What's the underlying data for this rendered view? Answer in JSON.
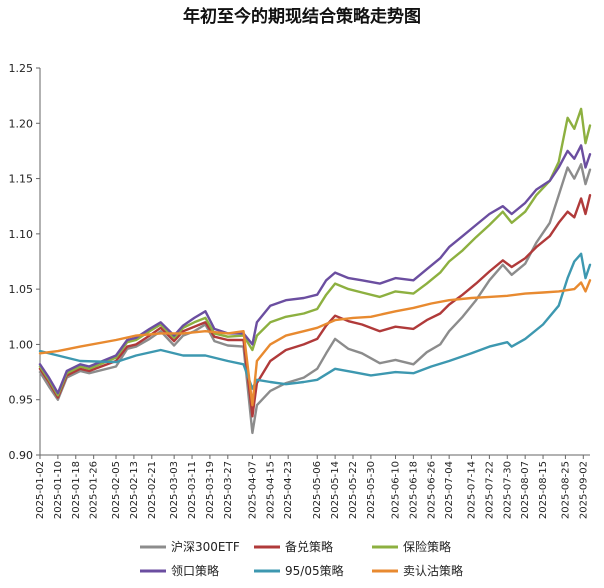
{
  "chart_data": {
    "type": "line",
    "title": "年初至今的期现结合策略走势图",
    "xlabel": "",
    "ylabel": "",
    "ylim": [
      0.9,
      1.25
    ],
    "yticks": [
      "0.90",
      "0.95",
      "1.00",
      "1.05",
      "1.10",
      "1.15",
      "1.20",
      "1.25"
    ],
    "grid": false,
    "legend_position": "bottom",
    "x_start": "2025-01-02",
    "x_end": "2025-09-05",
    "x_tick_labels": [
      "2025-01-02",
      "2025-01-10",
      "2025-01-18",
      "2025-01-26",
      "2025-02-05",
      "2025-02-13",
      "2025-02-21",
      "2025-03-03",
      "2025-03-11",
      "2025-03-19",
      "2025-03-27",
      "2025-04-07",
      "2025-04-15",
      "2025-04-23",
      "2025-05-06",
      "2025-05-14",
      "2025-05-22",
      "2025-05-30",
      "2025-06-10",
      "2025-06-18",
      "2025-06-26",
      "2025-07-04",
      "2025-07-14",
      "2025-07-22",
      "2025-07-30",
      "2025-08-07",
      "2025-08-15",
      "2025-08-25",
      "2025-09-02"
    ],
    "series": [
      {
        "name": "沪深300ETF",
        "color": "#8c8c8c",
        "points": [
          [
            "2025-01-02",
            0.975
          ],
          [
            "2025-01-06",
            0.962
          ],
          [
            "2025-01-10",
            0.95
          ],
          [
            "2025-01-14",
            0.97
          ],
          [
            "2025-01-20",
            0.976
          ],
          [
            "2025-01-24",
            0.974
          ],
          [
            "2025-02-05",
            0.98
          ],
          [
            "2025-02-10",
            0.996
          ],
          [
            "2025-02-14",
            0.998
          ],
          [
            "2025-02-20",
            1.005
          ],
          [
            "2025-02-25",
            1.012
          ],
          [
            "2025-03-03",
            0.999
          ],
          [
            "2025-03-07",
            1.008
          ],
          [
            "2025-03-12",
            1.012
          ],
          [
            "2025-03-17",
            1.018
          ],
          [
            "2025-03-21",
            1.003
          ],
          [
            "2025-03-27",
            0.999
          ],
          [
            "2025-04-03",
            0.998
          ],
          [
            "2025-04-07",
            0.92
          ],
          [
            "2025-04-09",
            0.945
          ],
          [
            "2025-04-15",
            0.958
          ],
          [
            "2025-04-22",
            0.965
          ],
          [
            "2025-04-30",
            0.97
          ],
          [
            "2025-05-06",
            0.978
          ],
          [
            "2025-05-10",
            0.992
          ],
          [
            "2025-05-14",
            1.005
          ],
          [
            "2025-05-20",
            0.996
          ],
          [
            "2025-05-26",
            0.992
          ],
          [
            "2025-06-03",
            0.983
          ],
          [
            "2025-06-10",
            0.986
          ],
          [
            "2025-06-18",
            0.982
          ],
          [
            "2025-06-24",
            0.993
          ],
          [
            "2025-06-30",
            1.0
          ],
          [
            "2025-07-04",
            1.012
          ],
          [
            "2025-07-10",
            1.025
          ],
          [
            "2025-07-16",
            1.04
          ],
          [
            "2025-07-22",
            1.058
          ],
          [
            "2025-07-28",
            1.072
          ],
          [
            "2025-08-01",
            1.063
          ],
          [
            "2025-08-07",
            1.073
          ],
          [
            "2025-08-12",
            1.092
          ],
          [
            "2025-08-18",
            1.11
          ],
          [
            "2025-08-22",
            1.135
          ],
          [
            "2025-08-26",
            1.16
          ],
          [
            "2025-08-29",
            1.15
          ],
          [
            "2025-09-01",
            1.163
          ],
          [
            "2025-09-03",
            1.145
          ],
          [
            "2025-09-05",
            1.158
          ]
        ]
      },
      {
        "name": "备兑策略",
        "color": "#b03a3a",
        "points": [
          [
            "2025-01-02",
            0.978
          ],
          [
            "2025-01-06",
            0.966
          ],
          [
            "2025-01-10",
            0.952
          ],
          [
            "2025-01-14",
            0.972
          ],
          [
            "2025-01-20",
            0.978
          ],
          [
            "2025-01-24",
            0.976
          ],
          [
            "2025-02-05",
            0.985
          ],
          [
            "2025-02-10",
            0.998
          ],
          [
            "2025-02-14",
            1.0
          ],
          [
            "2025-02-20",
            1.008
          ],
          [
            "2025-02-25",
            1.015
          ],
          [
            "2025-03-03",
            1.003
          ],
          [
            "2025-03-07",
            1.012
          ],
          [
            "2025-03-12",
            1.016
          ],
          [
            "2025-03-17",
            1.02
          ],
          [
            "2025-03-21",
            1.007
          ],
          [
            "2025-03-27",
            1.004
          ],
          [
            "2025-04-03",
            1.004
          ],
          [
            "2025-04-07",
            0.935
          ],
          [
            "2025-04-09",
            0.965
          ],
          [
            "2025-04-15",
            0.985
          ],
          [
            "2025-04-22",
            0.995
          ],
          [
            "2025-04-30",
            1.0
          ],
          [
            "2025-05-06",
            1.005
          ],
          [
            "2025-05-10",
            1.017
          ],
          [
            "2025-05-14",
            1.026
          ],
          [
            "2025-05-20",
            1.021
          ],
          [
            "2025-05-26",
            1.018
          ],
          [
            "2025-06-03",
            1.012
          ],
          [
            "2025-06-10",
            1.016
          ],
          [
            "2025-06-18",
            1.014
          ],
          [
            "2025-06-24",
            1.022
          ],
          [
            "2025-06-30",
            1.028
          ],
          [
            "2025-07-04",
            1.036
          ],
          [
            "2025-07-10",
            1.045
          ],
          [
            "2025-07-16",
            1.055
          ],
          [
            "2025-07-22",
            1.066
          ],
          [
            "2025-07-28",
            1.076
          ],
          [
            "2025-08-01",
            1.07
          ],
          [
            "2025-08-07",
            1.078
          ],
          [
            "2025-08-12",
            1.088
          ],
          [
            "2025-08-18",
            1.098
          ],
          [
            "2025-08-22",
            1.11
          ],
          [
            "2025-08-26",
            1.12
          ],
          [
            "2025-08-29",
            1.115
          ],
          [
            "2025-09-01",
            1.132
          ],
          [
            "2025-09-03",
            1.118
          ],
          [
            "2025-09-05",
            1.135
          ]
        ]
      },
      {
        "name": "保险策略",
        "color": "#8db040",
        "points": [
          [
            "2025-01-02",
            0.98
          ],
          [
            "2025-01-06",
            0.968
          ],
          [
            "2025-01-10",
            0.954
          ],
          [
            "2025-01-14",
            0.974
          ],
          [
            "2025-01-20",
            0.98
          ],
          [
            "2025-01-24",
            0.978
          ],
          [
            "2025-02-05",
            0.988
          ],
          [
            "2025-02-10",
            1.002
          ],
          [
            "2025-02-14",
            1.004
          ],
          [
            "2025-02-20",
            1.012
          ],
          [
            "2025-02-25",
            1.018
          ],
          [
            "2025-03-03",
            1.006
          ],
          [
            "2025-03-07",
            1.015
          ],
          [
            "2025-03-12",
            1.02
          ],
          [
            "2025-03-17",
            1.024
          ],
          [
            "2025-03-21",
            1.01
          ],
          [
            "2025-03-27",
            1.007
          ],
          [
            "2025-04-03",
            1.008
          ],
          [
            "2025-04-07",
            0.995
          ],
          [
            "2025-04-09",
            1.008
          ],
          [
            "2025-04-15",
            1.02
          ],
          [
            "2025-04-22",
            1.025
          ],
          [
            "2025-04-30",
            1.028
          ],
          [
            "2025-05-06",
            1.032
          ],
          [
            "2025-05-10",
            1.045
          ],
          [
            "2025-05-14",
            1.055
          ],
          [
            "2025-05-20",
            1.05
          ],
          [
            "2025-05-26",
            1.047
          ],
          [
            "2025-06-03",
            1.043
          ],
          [
            "2025-06-10",
            1.048
          ],
          [
            "2025-06-18",
            1.046
          ],
          [
            "2025-06-24",
            1.055
          ],
          [
            "2025-06-30",
            1.065
          ],
          [
            "2025-07-04",
            1.075
          ],
          [
            "2025-07-10",
            1.085
          ],
          [
            "2025-07-16",
            1.097
          ],
          [
            "2025-07-22",
            1.108
          ],
          [
            "2025-07-28",
            1.12
          ],
          [
            "2025-08-01",
            1.11
          ],
          [
            "2025-08-07",
            1.12
          ],
          [
            "2025-08-12",
            1.135
          ],
          [
            "2025-08-18",
            1.148
          ],
          [
            "2025-08-22",
            1.165
          ],
          [
            "2025-08-26",
            1.205
          ],
          [
            "2025-08-29",
            1.195
          ],
          [
            "2025-09-01",
            1.213
          ],
          [
            "2025-09-03",
            1.182
          ],
          [
            "2025-09-05",
            1.198
          ]
        ]
      },
      {
        "name": "领口策略",
        "color": "#6b4ea0",
        "points": [
          [
            "2025-01-02",
            0.982
          ],
          [
            "2025-01-06",
            0.97
          ],
          [
            "2025-01-10",
            0.956
          ],
          [
            "2025-01-14",
            0.976
          ],
          [
            "2025-01-20",
            0.982
          ],
          [
            "2025-01-24",
            0.98
          ],
          [
            "2025-02-05",
            0.99
          ],
          [
            "2025-02-10",
            1.004
          ],
          [
            "2025-02-14",
            1.006
          ],
          [
            "2025-02-20",
            1.014
          ],
          [
            "2025-02-25",
            1.02
          ],
          [
            "2025-03-03",
            1.008
          ],
          [
            "2025-03-07",
            1.017
          ],
          [
            "2025-03-12",
            1.024
          ],
          [
            "2025-03-17",
            1.03
          ],
          [
            "2025-03-21",
            1.014
          ],
          [
            "2025-03-27",
            1.01
          ],
          [
            "2025-04-03",
            1.01
          ],
          [
            "2025-04-07",
            1.0
          ],
          [
            "2025-04-09",
            1.02
          ],
          [
            "2025-04-15",
            1.035
          ],
          [
            "2025-04-22",
            1.04
          ],
          [
            "2025-04-30",
            1.042
          ],
          [
            "2025-05-06",
            1.045
          ],
          [
            "2025-05-10",
            1.058
          ],
          [
            "2025-05-14",
            1.065
          ],
          [
            "2025-05-20",
            1.06
          ],
          [
            "2025-05-26",
            1.058
          ],
          [
            "2025-06-03",
            1.055
          ],
          [
            "2025-06-10",
            1.06
          ],
          [
            "2025-06-18",
            1.058
          ],
          [
            "2025-06-24",
            1.068
          ],
          [
            "2025-06-30",
            1.078
          ],
          [
            "2025-07-04",
            1.088
          ],
          [
            "2025-07-10",
            1.098
          ],
          [
            "2025-07-16",
            1.108
          ],
          [
            "2025-07-22",
            1.118
          ],
          [
            "2025-07-28",
            1.125
          ],
          [
            "2025-08-01",
            1.118
          ],
          [
            "2025-08-07",
            1.128
          ],
          [
            "2025-08-12",
            1.14
          ],
          [
            "2025-08-18",
            1.148
          ],
          [
            "2025-08-22",
            1.16
          ],
          [
            "2025-08-26",
            1.175
          ],
          [
            "2025-08-29",
            1.168
          ],
          [
            "2025-09-01",
            1.18
          ],
          [
            "2025-09-03",
            1.16
          ],
          [
            "2025-09-05",
            1.172
          ]
        ]
      },
      {
        "name": "95/05策略",
        "color": "#3d98b0",
        "points": [
          [
            "2025-01-02",
            0.994
          ],
          [
            "2025-01-10",
            0.99
          ],
          [
            "2025-01-20",
            0.985
          ],
          [
            "2025-02-05",
            0.984
          ],
          [
            "2025-02-14",
            0.99
          ],
          [
            "2025-02-25",
            0.995
          ],
          [
            "2025-03-07",
            0.99
          ],
          [
            "2025-03-17",
            0.99
          ],
          [
            "2025-03-27",
            0.985
          ],
          [
            "2025-04-03",
            0.982
          ],
          [
            "2025-04-07",
            0.96
          ],
          [
            "2025-04-09",
            0.968
          ],
          [
            "2025-04-15",
            0.966
          ],
          [
            "2025-04-22",
            0.964
          ],
          [
            "2025-04-30",
            0.966
          ],
          [
            "2025-05-06",
            0.968
          ],
          [
            "2025-05-14",
            0.978
          ],
          [
            "2025-05-22",
            0.975
          ],
          [
            "2025-05-30",
            0.972
          ],
          [
            "2025-06-10",
            0.975
          ],
          [
            "2025-06-18",
            0.974
          ],
          [
            "2025-06-26",
            0.98
          ],
          [
            "2025-07-04",
            0.985
          ],
          [
            "2025-07-14",
            0.992
          ],
          [
            "2025-07-22",
            0.998
          ],
          [
            "2025-07-30",
            1.002
          ],
          [
            "2025-08-01",
            0.998
          ],
          [
            "2025-08-07",
            1.005
          ],
          [
            "2025-08-15",
            1.018
          ],
          [
            "2025-08-22",
            1.035
          ],
          [
            "2025-08-26",
            1.06
          ],
          [
            "2025-08-29",
            1.075
          ],
          [
            "2025-09-01",
            1.082
          ],
          [
            "2025-09-03",
            1.06
          ],
          [
            "2025-09-05",
            1.072
          ]
        ]
      },
      {
        "name": "卖认沽策略",
        "color": "#e88a30",
        "points": [
          [
            "2025-01-02",
            0.992
          ],
          [
            "2025-01-10",
            0.994
          ],
          [
            "2025-01-20",
            0.998
          ],
          [
            "2025-02-05",
            1.004
          ],
          [
            "2025-02-14",
            1.008
          ],
          [
            "2025-02-25",
            1.01
          ],
          [
            "2025-03-07",
            1.01
          ],
          [
            "2025-03-17",
            1.012
          ],
          [
            "2025-03-27",
            1.01
          ],
          [
            "2025-04-03",
            1.012
          ],
          [
            "2025-04-07",
            0.945
          ],
          [
            "2025-04-09",
            0.985
          ],
          [
            "2025-04-15",
            1.0
          ],
          [
            "2025-04-22",
            1.008
          ],
          [
            "2025-04-30",
            1.012
          ],
          [
            "2025-05-06",
            1.015
          ],
          [
            "2025-05-14",
            1.022
          ],
          [
            "2025-05-22",
            1.024
          ],
          [
            "2025-05-30",
            1.025
          ],
          [
            "2025-06-10",
            1.03
          ],
          [
            "2025-06-18",
            1.033
          ],
          [
            "2025-06-26",
            1.037
          ],
          [
            "2025-07-04",
            1.04
          ],
          [
            "2025-07-14",
            1.042
          ],
          [
            "2025-07-22",
            1.043
          ],
          [
            "2025-07-30",
            1.044
          ],
          [
            "2025-08-07",
            1.046
          ],
          [
            "2025-08-15",
            1.047
          ],
          [
            "2025-08-22",
            1.048
          ],
          [
            "2025-08-29",
            1.05
          ],
          [
            "2025-09-01",
            1.056
          ],
          [
            "2025-09-03",
            1.048
          ],
          [
            "2025-09-05",
            1.058
          ]
        ]
      }
    ]
  }
}
